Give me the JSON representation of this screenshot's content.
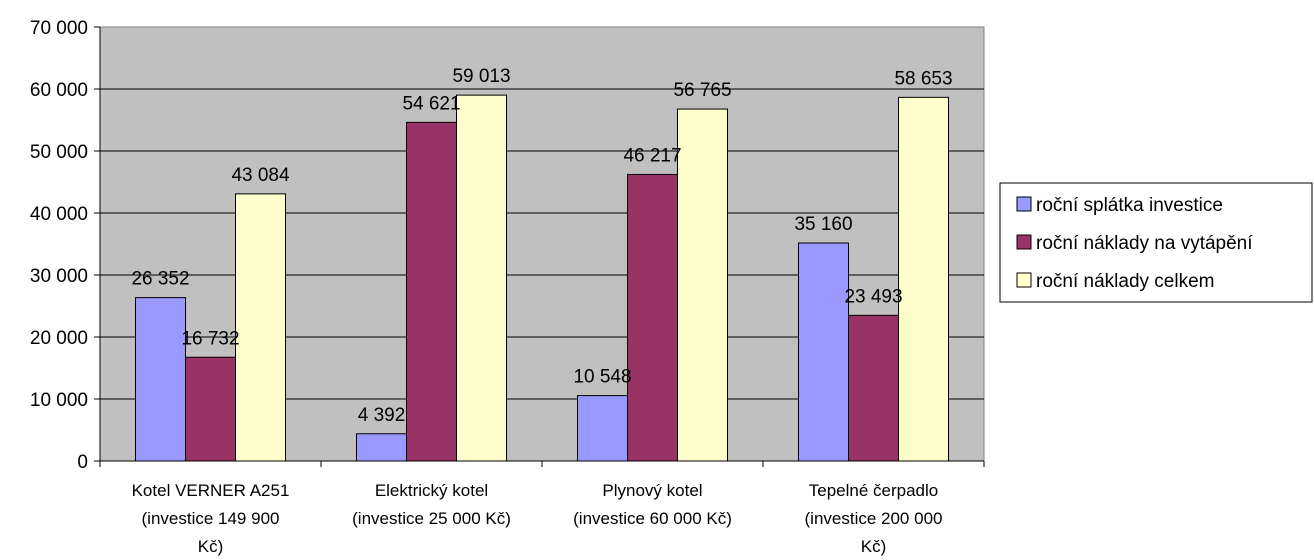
{
  "chart_data": {
    "type": "bar",
    "categories": [
      [
        "Kotel VERNER A251",
        "(investice 149 900",
        "Kč)"
      ],
      [
        "Elektrický kotel",
        "(investice 25 000 Kč)"
      ],
      [
        "Plynový kotel",
        "(investice 60 000 Kč)"
      ],
      [
        "Tepelné čerpadlo",
        "(investice 200 000",
        "Kč)"
      ]
    ],
    "series": [
      {
        "name": "roční splátka investice",
        "color": "#9999ff",
        "values": [
          26352,
          4392,
          10548,
          35160
        ],
        "labels": [
          "26 352",
          "4 392",
          "10 548",
          "35 160"
        ]
      },
      {
        "name": "roční náklady na vytápění",
        "color": "#993366",
        "values": [
          16732,
          54621,
          46217,
          23493
        ],
        "labels": [
          "16 732",
          "54 621",
          "46 217",
          "23 493"
        ]
      },
      {
        "name": "roční náklady celkem",
        "color": "#ffffcc",
        "values": [
          43084,
          59013,
          56765,
          58653
        ],
        "labels": [
          "43 084",
          "59 013",
          "56 765",
          "58 653"
        ]
      }
    ],
    "ylim": [
      0,
      70000
    ],
    "yticks": [
      0,
      10000,
      20000,
      30000,
      40000,
      50000,
      60000,
      70000
    ],
    "ytick_labels": [
      "0",
      "10 000",
      "20 000",
      "30 000",
      "40 000",
      "50 000",
      "60 000",
      "70 000"
    ],
    "grid": true,
    "plot_background": "#c0c0c0",
    "legend_position": "right",
    "title": "",
    "xlabel": "",
    "ylabel": ""
  }
}
